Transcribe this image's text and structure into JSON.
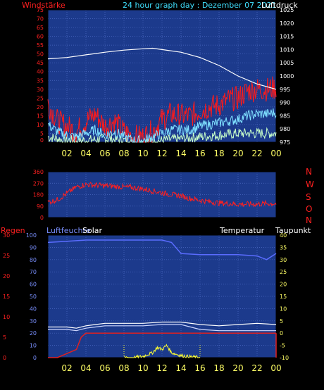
{
  "header": {
    "left_label": "Windstärke",
    "title": "24 hour graph day : Dezember 07 2021",
    "right_label": "Luftdruck"
  },
  "colors": {
    "background": "#000000",
    "plot_bg": "#1c3a8c",
    "grid": "#4d6bc4",
    "wind_gust": "#ff1a1a",
    "wind_avg": "#7fe0ff",
    "wind_min": "#c8ffc8",
    "pressure": "#ffffff",
    "direction": "#ff2020",
    "humidity": "#5a6cff",
    "temperature": "#ffffff",
    "dewpoint": "#cfd8ff",
    "rain": "#e02020",
    "solar": "#ffff30",
    "x_ticks": "#ffff66",
    "red_text": "#ff2020",
    "cyan_text": "#40e0ff",
    "white_text": "#ffffff",
    "blue_text": "#7a90ff"
  },
  "x_tick_labels": [
    "02",
    "04",
    "06",
    "08",
    "10",
    "12",
    "14",
    "16",
    "18",
    "20",
    "22",
    "00"
  ],
  "chart_data": [
    {
      "type": "line",
      "name": "wind-pressure",
      "x_range_hours": [
        0,
        24
      ],
      "y_left_label": "Windstärke",
      "y_left_ticks": [
        0,
        5,
        10,
        15,
        20,
        25,
        30,
        35,
        40,
        45,
        50,
        55,
        60,
        65,
        70,
        75
      ],
      "y_left_range": [
        0,
        75
      ],
      "y_right_label": "Luftdruck",
      "y_right_ticks": [
        975,
        980,
        985,
        990,
        995,
        1000,
        1005,
        1010,
        1015,
        1020,
        1025
      ],
      "y_right_range": [
        975,
        1025
      ],
      "series": [
        {
          "axis": "right",
          "x": [
            0,
            2,
            4,
            6,
            8,
            10,
            11,
            12,
            14,
            16,
            18,
            20,
            22,
            24
          ],
          "y": [
            1006.5,
            1007,
            1008,
            1009,
            1009.8,
            1010.3,
            1010.5,
            1010,
            1009,
            1007,
            1004,
            1000,
            997,
            995
          ]
        },
        {
          "axis": "left",
          "x": [
            0,
            1,
            2,
            3,
            4,
            5,
            6,
            7,
            8,
            9,
            10,
            11,
            12,
            13,
            14,
            15,
            16,
            17,
            18,
            19,
            20,
            21,
            22,
            23,
            24
          ],
          "y": [
            22,
            12,
            9,
            6,
            12,
            16,
            9,
            12,
            6,
            3,
            3,
            6,
            13,
            16,
            15,
            15,
            18,
            20,
            21,
            24,
            25,
            29,
            30,
            30,
            31
          ]
        },
        {
          "axis": "left",
          "x": [
            0,
            1,
            2,
            3,
            4,
            5,
            6,
            7,
            8,
            9,
            10,
            11,
            12,
            13,
            14,
            15,
            16,
            17,
            18,
            19,
            20,
            21,
            22,
            23,
            24
          ],
          "y": [
            10,
            6,
            4,
            3,
            5,
            7,
            4,
            6,
            3,
            1,
            1,
            3,
            5,
            7,
            7,
            7,
            9,
            10,
            11,
            12,
            13,
            15,
            16,
            16,
            17
          ]
        },
        {
          "axis": "left",
          "x": [
            0,
            2,
            4,
            6,
            8,
            10,
            12,
            14,
            16,
            18,
            20,
            22,
            24
          ],
          "y": [
            3,
            1,
            1,
            2,
            1,
            0,
            1,
            2,
            3,
            4,
            5,
            5,
            5
          ]
        }
      ]
    },
    {
      "type": "line",
      "name": "wind-direction",
      "x_range_hours": [
        0,
        24
      ],
      "y_ticks": [
        0,
        90,
        180,
        270,
        360
      ],
      "y_range": [
        0,
        360
      ],
      "y_right_labels": [
        "N",
        "W",
        "S",
        "O",
        "N"
      ],
      "series": [
        {
          "x": [
            0,
            1,
            2,
            3,
            4,
            5,
            6,
            7,
            8,
            9,
            10,
            11,
            12,
            13,
            14,
            15,
            16,
            17,
            18,
            19,
            20,
            21,
            22,
            23,
            24
          ],
          "y": [
            120,
            140,
            190,
            240,
            260,
            255,
            250,
            245,
            240,
            235,
            225,
            210,
            195,
            180,
            170,
            150,
            135,
            125,
            115,
            110,
            105,
            105,
            105,
            110,
            110
          ]
        }
      ]
    },
    {
      "type": "line",
      "name": "rain-humidity-solar-temperature",
      "x_range_hours": [
        0,
        24
      ],
      "y_left_label": "Regen",
      "y_left_ticks": [
        0,
        5,
        10,
        15,
        20,
        25,
        30
      ],
      "y_left_range": [
        0,
        30
      ],
      "y_hum_label": "Luftfeuchte",
      "y_hum_ticks": [
        0,
        10,
        20,
        30,
        40,
        50,
        60,
        70,
        80,
        90,
        100
      ],
      "y_hum_range": [
        0,
        100
      ],
      "solar_label": "Solar",
      "temperature_label": "Temperatur",
      "dewpoint_label": "Taupunkt",
      "y_right_ticks": [
        -10,
        -5,
        0,
        5,
        10,
        15,
        20,
        25,
        30,
        35,
        40
      ],
      "y_right_range": [
        -10,
        40
      ],
      "series": [
        {
          "name": "Luftfeuchte",
          "axis": "humidity",
          "x": [
            0,
            2,
            4,
            6,
            8,
            10,
            12,
            13,
            14,
            16,
            18,
            20,
            22,
            23,
            24
          ],
          "y": [
            94,
            95,
            96,
            96,
            96,
            96,
            96,
            94,
            85,
            84,
            84,
            84,
            83,
            80,
            85
          ]
        },
        {
          "name": "Temperatur",
          "axis": "right",
          "x": [
            0,
            2,
            3,
            4,
            5,
            6,
            8,
            10,
            12,
            14,
            16,
            18,
            20,
            22,
            24
          ],
          "y": [
            2.5,
            2.5,
            2,
            3,
            3.5,
            4,
            4,
            4,
            4.5,
            4.5,
            3.5,
            3,
            3.5,
            4,
            3.5
          ]
        },
        {
          "name": "Taupunkt",
          "axis": "right",
          "x": [
            0,
            2,
            3,
            4,
            5,
            6,
            8,
            10,
            12,
            14,
            16,
            18,
            20,
            22,
            24
          ],
          "y": [
            1.5,
            1.5,
            1,
            2,
            2.5,
            3,
            3,
            3,
            3.5,
            3.5,
            1.5,
            1,
            1,
            1,
            1
          ]
        },
        {
          "name": "Regen",
          "axis": "left",
          "x": [
            0,
            1,
            2,
            3,
            3.5,
            4,
            24
          ],
          "y": [
            0,
            0,
            1,
            2,
            5,
            6,
            6
          ]
        },
        {
          "name": "Solar",
          "axis": "left",
          "x": [
            8,
            9,
            10,
            11,
            11.5,
            12,
            12.5,
            13,
            14,
            15,
            16
          ],
          "y": [
            0,
            0,
            0.3,
            1.2,
            2.5,
            2,
            3,
            1.2,
            0.5,
            0.2,
            0
          ]
        }
      ]
    }
  ]
}
